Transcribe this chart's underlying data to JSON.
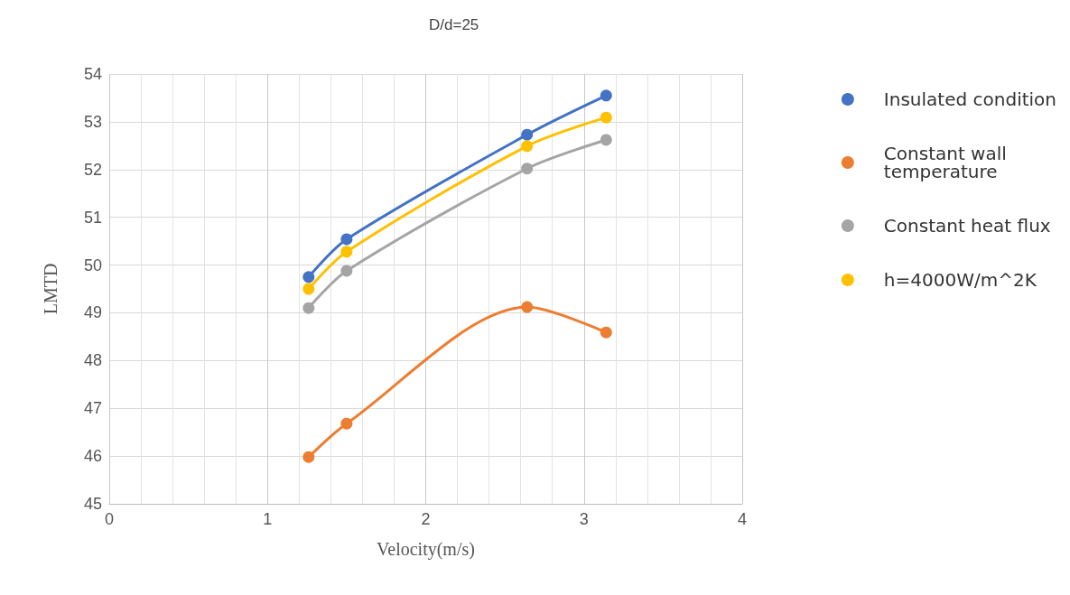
{
  "chart_data": {
    "type": "line",
    "title": "D/d=25",
    "xlabel": "Velocity(m/s)",
    "ylabel": "LMTD",
    "xlim": [
      0,
      4
    ],
    "xticks": [
      0,
      1,
      2,
      3,
      4
    ],
    "ylim": [
      45,
      54
    ],
    "yticks": [
      45,
      46,
      47,
      48,
      49,
      50,
      51,
      52,
      53,
      54
    ],
    "grid": true,
    "legend": "right",
    "marker": "circle",
    "line_style": "solid",
    "series": [
      {
        "name": "Insulated condition",
        "color": "#4472c4",
        "x": [
          1.26,
          1.5,
          2.64,
          3.14
        ],
        "values": [
          49.75,
          50.54,
          52.73,
          53.55
        ]
      },
      {
        "name": "Constant wall temperature",
        "color": "#ed7d31",
        "x": [
          1.26,
          1.5,
          2.64,
          3.14
        ],
        "values": [
          45.98,
          46.68,
          49.12,
          48.59
        ]
      },
      {
        "name": "Constant heat flux",
        "color": "#a5a5a5",
        "x": [
          1.26,
          1.5,
          2.64,
          3.14
        ],
        "values": [
          49.1,
          49.88,
          52.02,
          52.62
        ]
      },
      {
        "name": "h=4000W/m^2K",
        "color": "#ffc000",
        "x": [
          1.26,
          1.5,
          2.64,
          3.14
        ],
        "values": [
          49.5,
          50.28,
          52.49,
          53.09
        ]
      }
    ]
  }
}
